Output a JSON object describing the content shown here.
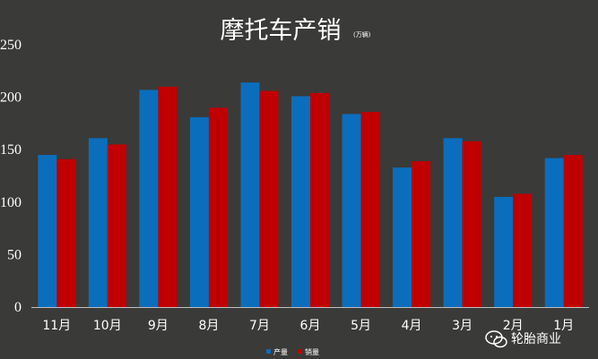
{
  "chart_data": {
    "type": "bar",
    "title": "摩托车产销",
    "subtitle": "(万辆)",
    "categories": [
      "11月",
      "10月",
      "9月",
      "8月",
      "7月",
      "6月",
      "5月",
      "4月",
      "3月",
      "2月",
      "1月"
    ],
    "series": [
      {
        "name": "产量",
        "color": "#0a6ebd",
        "values": [
          145,
          161,
          207,
          181,
          214,
          201,
          184,
          133,
          161,
          105,
          142
        ]
      },
      {
        "name": "销量",
        "color": "#c00000",
        "values": [
          141,
          155,
          210,
          190,
          206,
          204,
          186,
          139,
          158,
          108,
          145
        ]
      }
    ],
    "yticks": [
      0,
      50,
      100,
      150,
      200,
      250
    ],
    "ylim": [
      0,
      250
    ],
    "grid": false,
    "legend": "bottom"
  },
  "watermark": {
    "text": "轮胎商业",
    "icon": "wechat-icon"
  }
}
